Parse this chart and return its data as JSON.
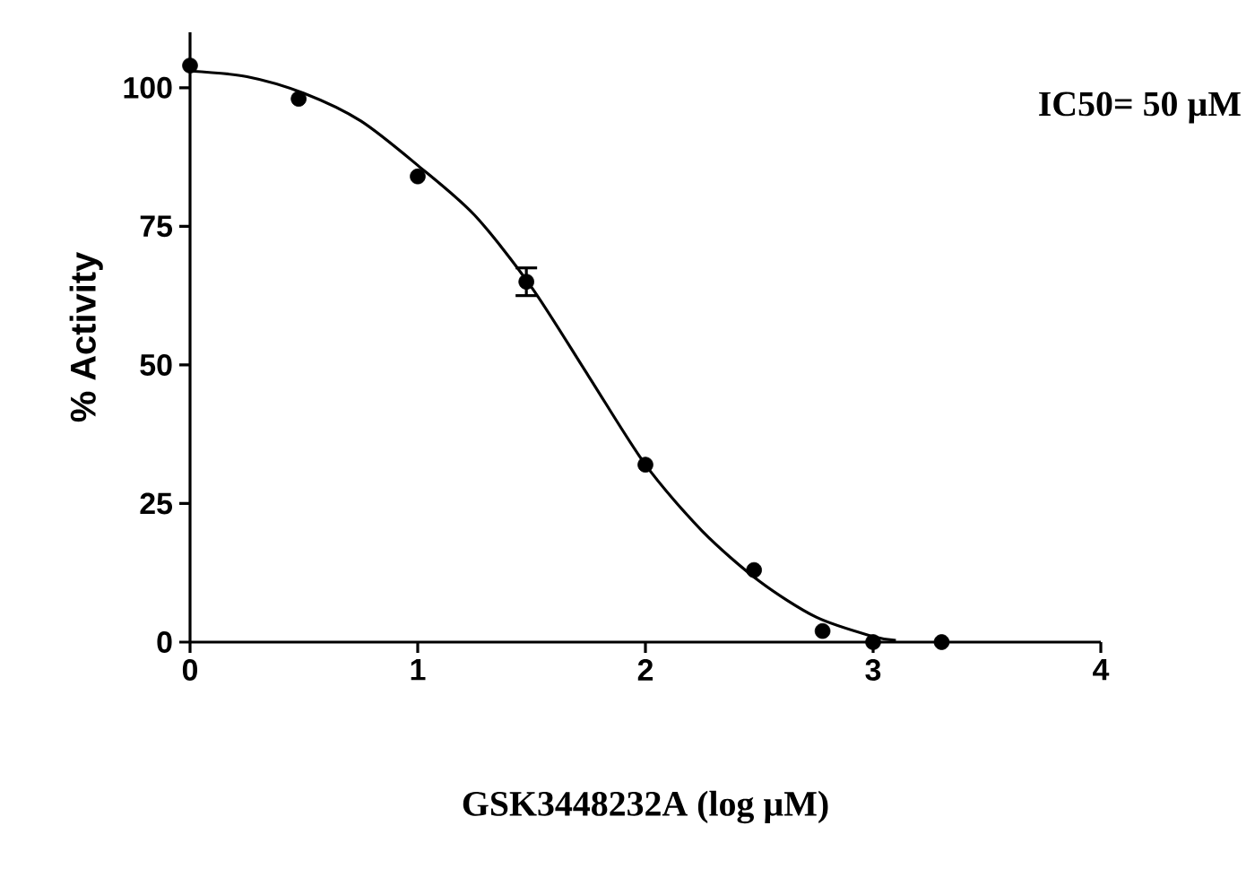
{
  "chart_data": {
    "type": "scatter",
    "xlabel": "GSK3448232A (log µM)",
    "ylabel": "% Activity",
    "annotations": [
      "IC50= 50 µM"
    ],
    "xlim": [
      0,
      4
    ],
    "xticks": [
      0,
      1,
      2,
      3,
      4
    ],
    "ylim": [
      0,
      110
    ],
    "yticks": [
      0,
      25,
      50,
      75,
      100
    ],
    "grid": false,
    "marker": "circle",
    "series": [
      {
        "color": "#000000",
        "x": [
          0,
          0.477,
          1,
          1.477,
          2,
          2.477,
          2.778,
          3,
          3.301
        ],
        "values": [
          104,
          98,
          84,
          65,
          32,
          13,
          2,
          0,
          0
        ],
        "errors": [
          null,
          null,
          null,
          2.5,
          null,
          null,
          null,
          null,
          null
        ]
      },
      {
        "type": "line",
        "color": "#000000",
        "marker": "none",
        "line_style": "solid",
        "x": [
          0,
          0.25,
          0.5,
          0.75,
          1,
          1.25,
          1.5,
          1.75,
          2,
          2.25,
          2.5,
          2.75,
          3,
          3.1
        ],
        "values": [
          103,
          102,
          99,
          94,
          86,
          77,
          64,
          48,
          32,
          20,
          11,
          4.5,
          1,
          0.3
        ]
      }
    ]
  }
}
